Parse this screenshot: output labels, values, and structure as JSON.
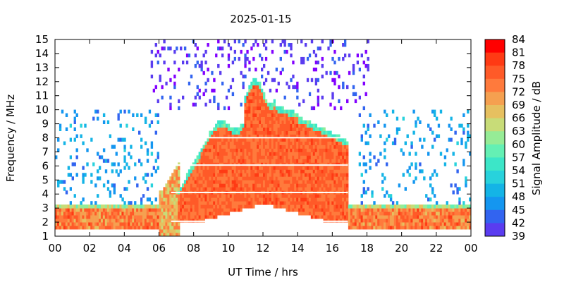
{
  "chart_data": {
    "type": "heatmap",
    "title": "2025-01-15",
    "xlabel": "UT Time / hrs",
    "ylabel": "Frequency / MHz",
    "colorbar_label": "Signal Amplitude / dB",
    "xlim": [
      0,
      24
    ],
    "ylim": [
      1,
      15
    ],
    "x_ticks": [
      "00",
      "02",
      "04",
      "06",
      "08",
      "10",
      "12",
      "14",
      "16",
      "18",
      "20",
      "22",
      "00"
    ],
    "y_ticks": [
      "1",
      "2",
      "3",
      "4",
      "5",
      "6",
      "7",
      "8",
      "9",
      "10",
      "11",
      "12",
      "13",
      "14",
      "15"
    ],
    "colorbar_range": [
      39,
      84
    ],
    "colorbar_ticks": [
      "84",
      "81",
      "78",
      "75",
      "72",
      "69",
      "66",
      "63",
      "60",
      "57",
      "54",
      "51",
      "48",
      "45",
      "42",
      "39"
    ],
    "colorbar_colors": [
      "#ff0000",
      "#ff3a14",
      "#ff5a28",
      "#ff7a3c",
      "#f5a050",
      "#e6c060",
      "#c8dc78",
      "#96ec96",
      "#64f0b4",
      "#3ce6c8",
      "#28d2dc",
      "#14b4e6",
      "#1496f0",
      "#3264f0",
      "#5a3cf0",
      "#8200ff"
    ],
    "grid": false,
    "features": {
      "day_onset_hour": 6.5,
      "day_end_hour": 17.5,
      "peak_frequency_mhz": 12.2,
      "peak_time_hours": 11.5,
      "night_band_mhz": [
        1.3,
        3.0
      ]
    }
  }
}
